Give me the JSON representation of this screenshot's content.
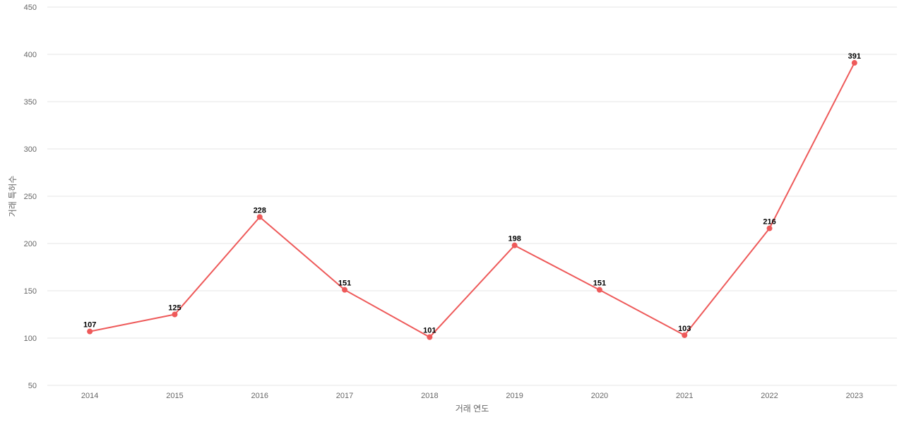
{
  "chart_data": {
    "type": "line",
    "title": "",
    "xlabel": "거래 연도",
    "ylabel": "거래 특허수",
    "categories": [
      "2014",
      "2015",
      "2016",
      "2017",
      "2018",
      "2019",
      "2020",
      "2021",
      "2022",
      "2023"
    ],
    "series": [
      {
        "values": [
          107,
          125,
          228,
          151,
          101,
          198,
          151,
          103,
          216,
          391
        ]
      }
    ],
    "y_ticks": [
      50,
      100,
      150,
      200,
      250,
      300,
      350,
      400,
      450
    ],
    "ylim": [
      50,
      450
    ],
    "grid": true,
    "legend": "none",
    "data_labels": true
  },
  "colors": {
    "line": "#ee5a5a",
    "grid": "#e6e6e6",
    "tick_text": "#666666",
    "axis_title": "#666666",
    "data_label": "#000000"
  }
}
